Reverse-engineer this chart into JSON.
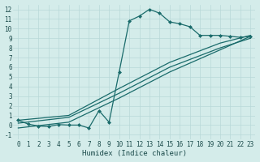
{
  "xlabel": "Humidex (Indice chaleur)",
  "bg_color": "#d4ecea",
  "line_color": "#1a6b6b",
  "grid_color": "#b8d8d8",
  "xlim": [
    -0.5,
    23.5
  ],
  "ylim": [
    -1.5,
    12.5
  ],
  "xticks": [
    0,
    1,
    2,
    3,
    4,
    5,
    6,
    7,
    8,
    9,
    10,
    11,
    12,
    13,
    14,
    15,
    16,
    17,
    18,
    19,
    20,
    21,
    22,
    23
  ],
  "yticks": [
    -1,
    0,
    1,
    2,
    3,
    4,
    5,
    6,
    7,
    8,
    9,
    10,
    11,
    12
  ],
  "main_x": [
    0,
    1,
    2,
    3,
    4,
    5,
    6,
    7,
    8,
    9,
    10,
    11,
    12,
    13,
    14,
    15,
    16,
    17,
    18,
    19,
    20,
    21,
    22,
    23
  ],
  "main_y": [
    0.5,
    0.1,
    -0.1,
    -0.15,
    0.05,
    0.0,
    0.0,
    -0.3,
    1.5,
    0.3,
    5.5,
    10.8,
    11.3,
    12.0,
    11.6,
    10.7,
    10.5,
    10.2,
    9.3,
    9.3,
    9.3,
    9.2,
    9.1,
    9.2
  ],
  "line1_x": [
    0,
    5,
    10,
    15,
    20,
    23
  ],
  "line1_y": [
    0.5,
    1.0,
    3.8,
    6.5,
    8.5,
    9.3
  ],
  "line2_x": [
    0,
    5,
    10,
    15,
    20,
    23
  ],
  "line2_y": [
    0.2,
    0.8,
    3.3,
    6.0,
    8.0,
    9.0
  ],
  "line3_x": [
    0,
    5,
    10,
    15,
    20,
    23
  ],
  "line3_y": [
    -0.3,
    0.3,
    2.8,
    5.5,
    7.8,
    9.2
  ]
}
